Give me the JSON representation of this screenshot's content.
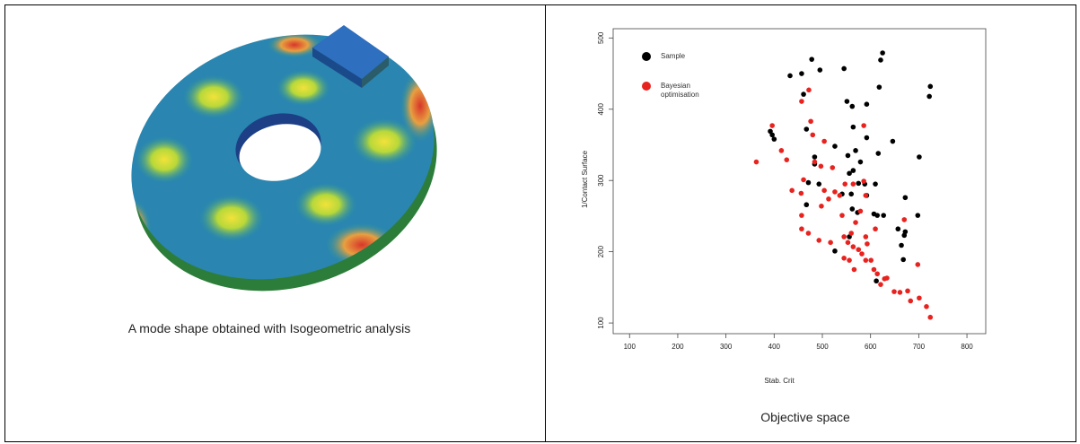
{
  "table": {
    "captions": [
      "A mode shape obtained with Isogeometric analysis",
      "Objective space"
    ]
  },
  "chart_data": {
    "type": "scatter",
    "xlabel": "Stab. Crit",
    "ylabel": "1/Contact Surface",
    "xlim": [
      66,
      839
    ],
    "ylim": [
      85,
      513
    ],
    "xticks": [
      100,
      200,
      300,
      400,
      500,
      600,
      700,
      800
    ],
    "yticks": [
      100,
      200,
      300,
      400,
      500
    ],
    "series": [
      {
        "name": "Sample",
        "color": "#000000",
        "x": [
          433,
          457,
          478,
          495,
          545,
          625,
          621,
          724,
          722,
          461,
          551,
          562,
          592,
          618,
          392,
          396,
          400,
          467,
          484,
          484,
          526,
          564,
          553,
          556,
          569,
          579,
          592,
          616,
          646,
          701,
          564,
          575,
          588,
          610,
          541,
          560,
          592,
          614,
          627,
          670,
          698,
          672,
          471,
          493,
          467,
          562,
          573,
          607,
          672,
          664,
          668,
          526,
          612,
          556,
          657
        ],
        "values": [
          447,
          450,
          470,
          455,
          457,
          479,
          469,
          432,
          418,
          421,
          411,
          404,
          407,
          431,
          369,
          364,
          358,
          372,
          333,
          323,
          348,
          375,
          335,
          310,
          342,
          326,
          360,
          338,
          355,
          333,
          314,
          296,
          295,
          295,
          281,
          281,
          279,
          251,
          251,
          223,
          251,
          276,
          297,
          295,
          266,
          260,
          255,
          253,
          228,
          209,
          189,
          201,
          159,
          221,
          232
        ]
      },
      {
        "name": "Bayesian optimisation",
        "color": "#e8231f",
        "x": [
          363,
          396,
          415,
          457,
          472,
          476,
          480,
          484,
          504,
          497,
          461,
          456,
          457,
          437,
          457,
          471,
          498,
          513,
          526,
          536,
          547,
          564,
          586,
          590,
          579,
          569,
          560,
          545,
          541,
          553,
          564,
          575,
          593,
          582,
          590,
          601,
          607,
          614,
          621,
          629,
          634,
          649,
          661,
          677,
          683,
          701,
          716,
          724,
          698,
          670,
          586,
          610,
          590,
          556,
          566,
          545,
          517,
          493,
          504,
          521,
          426
        ],
        "values": [
          326,
          377,
          342,
          411,
          427,
          383,
          364,
          326,
          355,
          320,
          301,
          282,
          251,
          286,
          232,
          226,
          264,
          274,
          284,
          279,
          295,
          295,
          299,
          279,
          257,
          241,
          226,
          221,
          251,
          213,
          207,
          203,
          211,
          197,
          188,
          188,
          175,
          169,
          154,
          162,
          163,
          144,
          143,
          145,
          131,
          135,
          123,
          108,
          182,
          245,
          377,
          232,
          221,
          188,
          175,
          191,
          213,
          216,
          286,
          318,
          329
        ]
      }
    ]
  }
}
